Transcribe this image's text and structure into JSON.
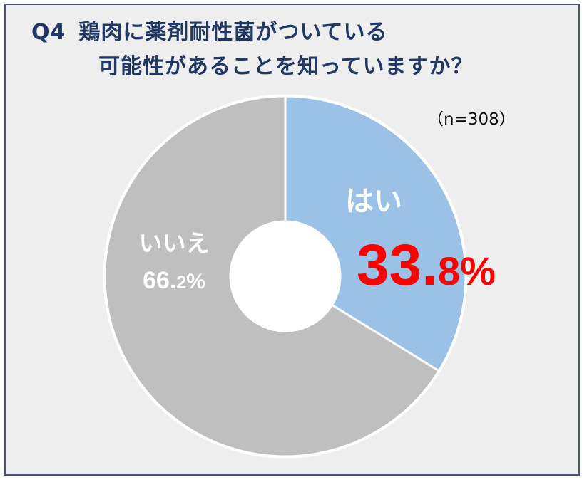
{
  "question": {
    "number": "Q4",
    "line1": "鶏肉に薬剤耐性菌がついている",
    "line2": "可能性があることを知っていますか？"
  },
  "sample_size": "（n=308）",
  "chart_data": {
    "type": "pie",
    "variant": "donut",
    "slices": [
      {
        "label": "はい",
        "value": 33.8,
        "value_main": "33.",
        "value_small": "8",
        "unit": "%",
        "color": "#9bc2e6"
      },
      {
        "label": "いいえ",
        "value": 66.2,
        "value_main": "66.",
        "value_small": "2",
        "unit": "%",
        "color": "#bfbfbf"
      }
    ],
    "start_angle": "12 o'clock",
    "direction": "clockwise"
  },
  "colors": {
    "title": "#1f3864",
    "frame_border": "#4a5472",
    "background": "#eeeeee",
    "highlight_value": "#ff0000",
    "slice_text": "#ffffff"
  }
}
